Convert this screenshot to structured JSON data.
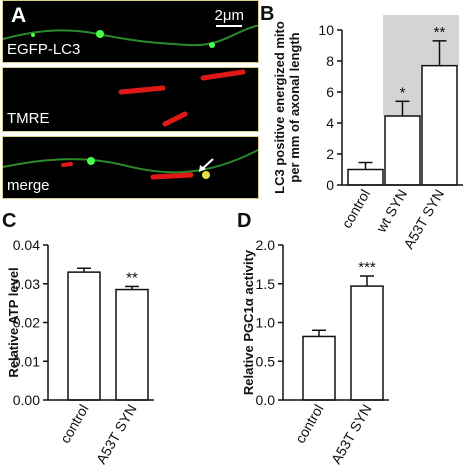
{
  "panel_a": {
    "letter": "A",
    "rows": [
      {
        "label": "EGFP-LC3"
      },
      {
        "label": "TMRE"
      },
      {
        "label": "merge"
      }
    ],
    "scale_bar": "2μm",
    "colors": {
      "green": "#2a8a2a",
      "red": "#e01818",
      "yellow": "#e8e040"
    }
  },
  "chart_data": [
    {
      "panel": "B",
      "type": "bar",
      "categories": [
        "control",
        "wt SYN",
        "A53T SYN"
      ],
      "values": [
        1.0,
        4.45,
        7.7
      ],
      "errors": [
        0.45,
        0.95,
        1.6
      ],
      "significance": [
        "",
        "*",
        "**"
      ],
      "ylabel": "LC3 positive energized mito\nper mm of axonal length",
      "ylim": [
        0,
        10
      ],
      "yticks": [
        0,
        2,
        4,
        6,
        8,
        10
      ],
      "highlight_bars": [
        1,
        2
      ]
    },
    {
      "panel": "C",
      "type": "bar",
      "categories": [
        "control",
        "A53T SYN"
      ],
      "values": [
        0.033,
        0.0285
      ],
      "errors": [
        0.001,
        0.0008
      ],
      "significance": [
        "",
        "**"
      ],
      "ylabel": "Relative ATP level",
      "ylim": [
        0,
        0.04
      ],
      "yticks": [
        "0.00",
        "0.01",
        "0.02",
        "0.03",
        "0.04"
      ]
    },
    {
      "panel": "D",
      "type": "bar",
      "categories": [
        "control",
        "A53T SYN"
      ],
      "values": [
        0.82,
        1.47
      ],
      "errors": [
        0.08,
        0.13
      ],
      "significance": [
        "",
        "***"
      ],
      "ylabel": "Relative PGC1α activity",
      "ylim": [
        0,
        2.0
      ],
      "yticks": [
        "0.0",
        "0.5",
        "1.0",
        "1.5",
        "2.0"
      ]
    }
  ]
}
